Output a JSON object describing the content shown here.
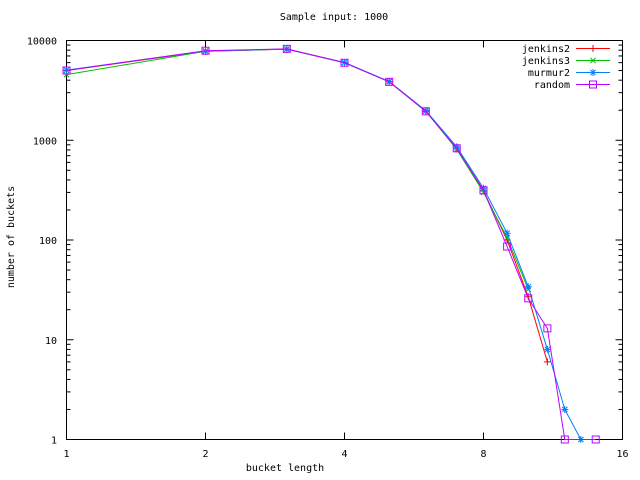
{
  "title": "Sample input: 1000",
  "chart_data": {
    "type": "line",
    "title": "Sample input: 1000",
    "xlabel": "bucket length",
    "ylabel": "number of buckets",
    "x_scale": "log2",
    "y_scale": "log10",
    "xlim": [
      1,
      16
    ],
    "ylim": [
      1,
      10000
    ],
    "x_ticks": [
      1,
      2,
      4,
      8,
      16
    ],
    "y_ticks": [
      1,
      10,
      100,
      1000,
      10000
    ],
    "y_minor_ticks_per_decade": [
      2,
      3,
      4,
      5,
      6,
      7,
      8,
      9
    ],
    "grid": false,
    "legend_position": "top-right-inside",
    "axis_color": "#000000",
    "background_color": "#ffffff",
    "series": [
      {
        "name": "jenkins2",
        "color": "#ff0000",
        "marker": "plus",
        "points": [
          [
            1,
            5000
          ],
          [
            2,
            7800
          ],
          [
            3,
            8200
          ],
          [
            4,
            6000
          ],
          [
            5,
            3860
          ],
          [
            6,
            1950
          ],
          [
            7,
            820
          ],
          [
            8,
            310
          ],
          [
            9,
            100
          ],
          [
            10,
            27
          ],
          [
            11,
            6
          ]
        ]
      },
      {
        "name": "jenkins3",
        "color": "#00c000",
        "marker": "cross",
        "points": [
          [
            1,
            4550
          ],
          [
            2,
            7800
          ],
          [
            3,
            8200
          ],
          [
            4,
            6000
          ],
          [
            5,
            3860
          ],
          [
            6,
            1960
          ],
          [
            7,
            810
          ],
          [
            8,
            300
          ],
          [
            9,
            105
          ],
          [
            10,
            32
          ]
        ]
      },
      {
        "name": "murmur2",
        "color": "#0080ff",
        "marker": "asterisk",
        "points": [
          [
            1,
            5050
          ],
          [
            2,
            7850
          ],
          [
            3,
            8200
          ],
          [
            4,
            6020
          ],
          [
            5,
            3880
          ],
          [
            6,
            1980
          ],
          [
            7,
            860
          ],
          [
            8,
            330
          ],
          [
            9,
            117
          ],
          [
            10,
            34
          ],
          [
            11,
            8
          ],
          [
            12,
            2
          ],
          [
            13,
            1
          ]
        ]
      },
      {
        "name": "random",
        "color": "#c000ff",
        "marker": "square-open",
        "points": [
          [
            1,
            5000
          ],
          [
            2,
            7900
          ],
          [
            3,
            8250
          ],
          [
            4,
            5980
          ],
          [
            5,
            3850
          ],
          [
            6,
            1950
          ],
          [
            7,
            830
          ],
          [
            8,
            315
          ],
          [
            9,
            86
          ],
          [
            10,
            26
          ],
          [
            11,
            13
          ],
          [
            12,
            1
          ],
          [
            14,
            1
          ]
        ]
      }
    ]
  }
}
